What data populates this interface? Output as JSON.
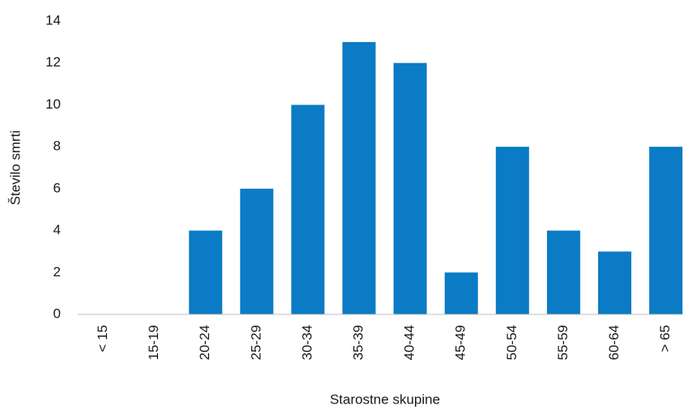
{
  "chart_data": {
    "type": "bar",
    "categories": [
      "< 15",
      "15-19",
      "20-24",
      "25-29",
      "30-34",
      "35-39",
      "40-44",
      "45-49",
      "50-54",
      "55-59",
      "60-64",
      "> 65"
    ],
    "values": [
      0,
      0,
      4,
      6,
      10,
      13,
      12,
      2,
      8,
      4,
      3,
      8
    ],
    "color": "#0a7bc4",
    "xlabel": "Starostne skupine",
    "ylabel": "Število smrti",
    "ylim": [
      0,
      14
    ],
    "yticks": [
      0,
      2,
      4,
      6,
      8,
      10,
      12,
      14
    ],
    "grid": false
  }
}
